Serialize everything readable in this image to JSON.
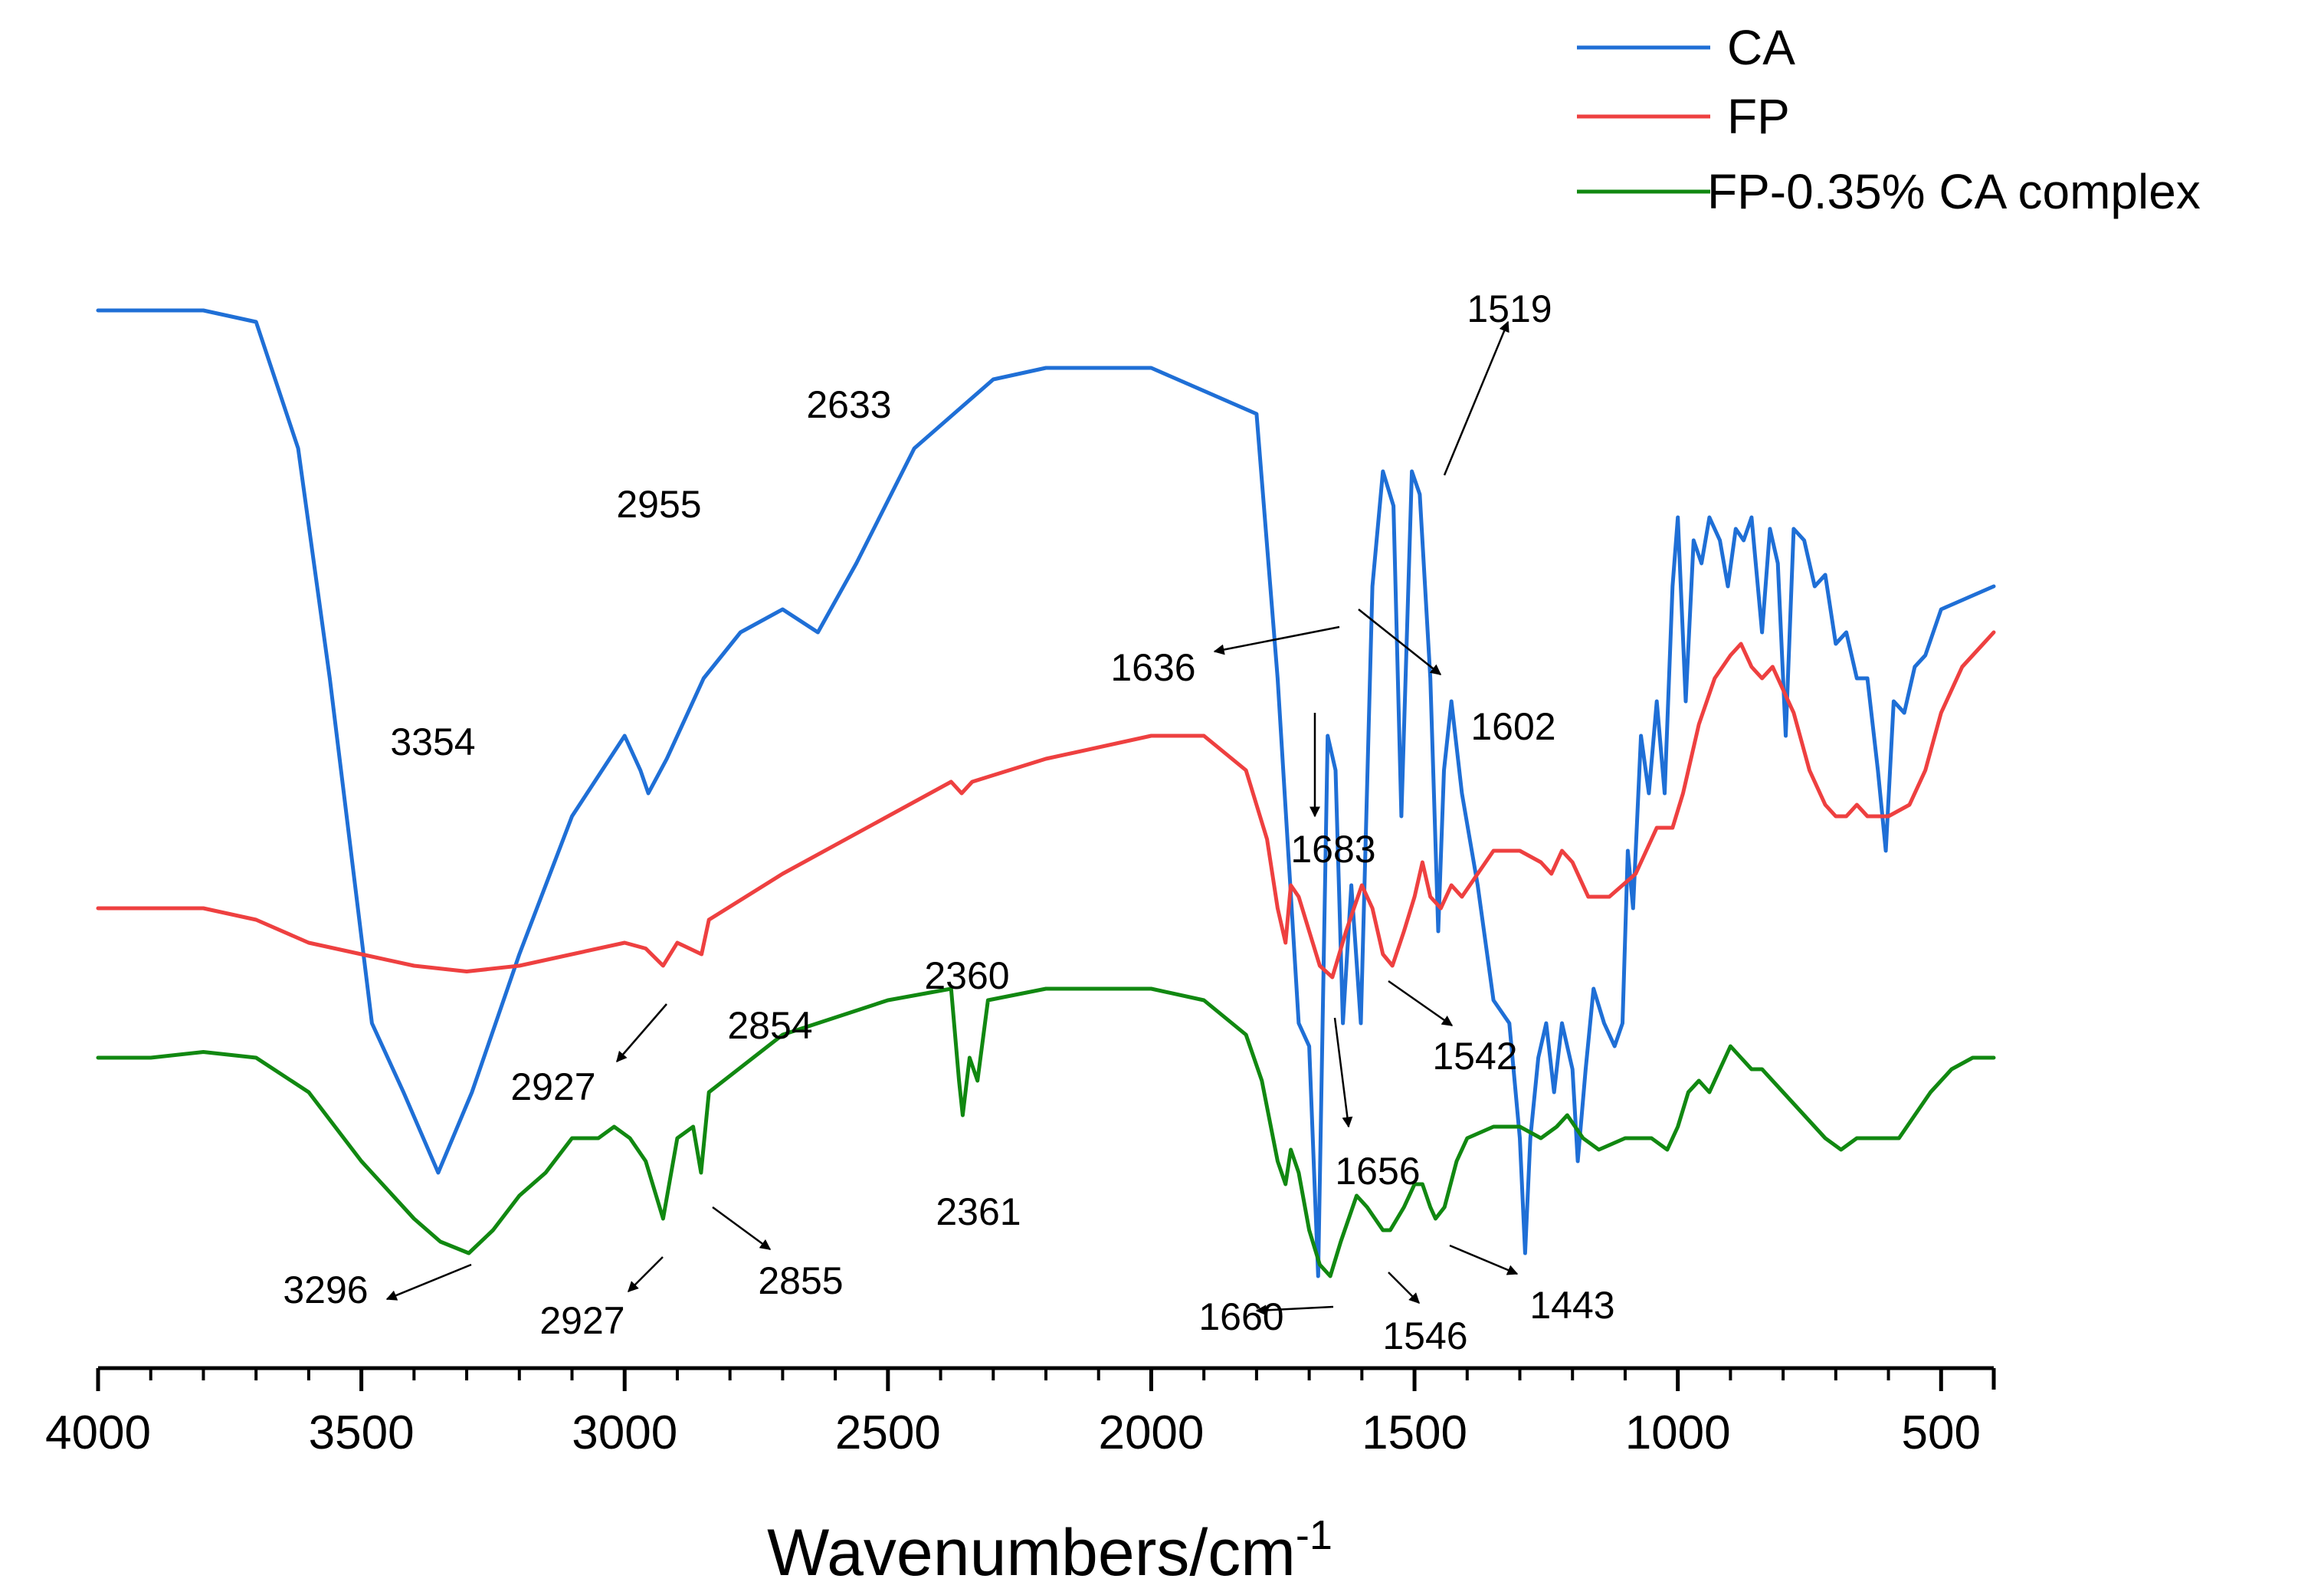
{
  "chart_data": {
    "type": "line",
    "xlabel": "Wavenumbers/cm",
    "xlabel_superscript": "-1",
    "ylabel": "",
    "xlim": [
      4000,
      400
    ],
    "x_ticks": [
      4000,
      3500,
      3000,
      2500,
      2000,
      1500,
      1000,
      500
    ],
    "x_tick_labels": [
      "4000",
      "3500",
      "3000",
      "2500",
      "2000",
      "1500",
      "1000",
      "500"
    ],
    "y_axis_visible": false,
    "grid": false,
    "legend_position": "top-right",
    "series": [
      {
        "name": "CA",
        "color": "#1f6fd6",
        "points": [
          [
            4000,
            0.92
          ],
          [
            3800,
            0.92
          ],
          [
            3700,
            0.91
          ],
          [
            3620,
            0.8
          ],
          [
            3560,
            0.6
          ],
          [
            3480,
            0.3
          ],
          [
            3420,
            0.24
          ],
          [
            3354,
            0.17
          ],
          [
            3290,
            0.24
          ],
          [
            3200,
            0.36
          ],
          [
            3100,
            0.48
          ],
          [
            3000,
            0.55
          ],
          [
            2970,
            0.52
          ],
          [
            2955,
            0.5
          ],
          [
            2920,
            0.53
          ],
          [
            2850,
            0.6
          ],
          [
            2780,
            0.64
          ],
          [
            2700,
            0.66
          ],
          [
            2633,
            0.64
          ],
          [
            2560,
            0.7
          ],
          [
            2450,
            0.8
          ],
          [
            2300,
            0.86
          ],
          [
            2200,
            0.87
          ],
          [
            2000,
            0.87
          ],
          [
            1800,
            0.83
          ],
          [
            1760,
            0.6
          ],
          [
            1720,
            0.3
          ],
          [
            1700,
            0.28
          ],
          [
            1683,
            0.08
          ],
          [
            1665,
            0.55
          ],
          [
            1650,
            0.52
          ],
          [
            1636,
            0.3
          ],
          [
            1620,
            0.42
          ],
          [
            1602,
            0.3
          ],
          [
            1580,
            0.68
          ],
          [
            1560,
            0.78
          ],
          [
            1540,
            0.75
          ],
          [
            1525,
            0.48
          ],
          [
            1505,
            0.78
          ],
          [
            1490,
            0.76
          ],
          [
            1470,
            0.6
          ],
          [
            1455,
            0.38
          ],
          [
            1444,
            0.52
          ],
          [
            1430,
            0.58
          ],
          [
            1410,
            0.5
          ],
          [
            1380,
            0.42
          ],
          [
            1350,
            0.32
          ],
          [
            1320,
            0.3
          ],
          [
            1300,
            0.2
          ],
          [
            1290,
            0.1
          ],
          [
            1280,
            0.2
          ],
          [
            1265,
            0.27
          ],
          [
            1250,
            0.3
          ],
          [
            1235,
            0.24
          ],
          [
            1220,
            0.3
          ],
          [
            1200,
            0.26
          ],
          [
            1190,
            0.18
          ],
          [
            1175,
            0.26
          ],
          [
            1160,
            0.33
          ],
          [
            1140,
            0.3
          ],
          [
            1120,
            0.28
          ],
          [
            1105,
            0.3
          ],
          [
            1095,
            0.45
          ],
          [
            1085,
            0.4
          ],
          [
            1070,
            0.55
          ],
          [
            1055,
            0.5
          ],
          [
            1040,
            0.58
          ],
          [
            1025,
            0.5
          ],
          [
            1010,
            0.68
          ],
          [
            1000,
            0.74
          ],
          [
            985,
            0.58
          ],
          [
            970,
            0.72
          ],
          [
            955,
            0.7
          ],
          [
            940,
            0.74
          ],
          [
            920,
            0.72
          ],
          [
            905,
            0.68
          ],
          [
            890,
            0.73
          ],
          [
            875,
            0.72
          ],
          [
            860,
            0.74
          ],
          [
            840,
            0.64
          ],
          [
            825,
            0.73
          ],
          [
            810,
            0.7
          ],
          [
            795,
            0.55
          ],
          [
            780,
            0.73
          ],
          [
            760,
            0.72
          ],
          [
            740,
            0.68
          ],
          [
            720,
            0.69
          ],
          [
            700,
            0.63
          ],
          [
            680,
            0.64
          ],
          [
            660,
            0.6
          ],
          [
            640,
            0.6
          ],
          [
            620,
            0.52
          ],
          [
            605,
            0.45
          ],
          [
            590,
            0.58
          ],
          [
            570,
            0.57
          ],
          [
            550,
            0.61
          ],
          [
            530,
            0.62
          ],
          [
            500,
            0.66
          ],
          [
            450,
            0.67
          ],
          [
            400,
            0.68
          ]
        ]
      },
      {
        "name": "FP",
        "color": "#ee4040",
        "points": [
          [
            4000,
            0.4
          ],
          [
            3800,
            0.4
          ],
          [
            3700,
            0.39
          ],
          [
            3600,
            0.37
          ],
          [
            3500,
            0.36
          ],
          [
            3400,
            0.35
          ],
          [
            3300,
            0.345
          ],
          [
            3200,
            0.35
          ],
          [
            3100,
            0.36
          ],
          [
            3000,
            0.37
          ],
          [
            2960,
            0.365
          ],
          [
            2927,
            0.35
          ],
          [
            2900,
            0.37
          ],
          [
            2854,
            0.36
          ],
          [
            2840,
            0.39
          ],
          [
            2700,
            0.43
          ],
          [
            2500,
            0.48
          ],
          [
            2380,
            0.51
          ],
          [
            2360,
            0.5
          ],
          [
            2340,
            0.51
          ],
          [
            2200,
            0.53
          ],
          [
            2000,
            0.55
          ],
          [
            1900,
            0.55
          ],
          [
            1820,
            0.52
          ],
          [
            1780,
            0.46
          ],
          [
            1760,
            0.4
          ],
          [
            1745,
            0.37
          ],
          [
            1735,
            0.42
          ],
          [
            1720,
            0.41
          ],
          [
            1700,
            0.38
          ],
          [
            1680,
            0.35
          ],
          [
            1656,
            0.34
          ],
          [
            1630,
            0.38
          ],
          [
            1600,
            0.42
          ],
          [
            1580,
            0.4
          ],
          [
            1560,
            0.36
          ],
          [
            1542,
            0.35
          ],
          [
            1520,
            0.38
          ],
          [
            1500,
            0.41
          ],
          [
            1485,
            0.44
          ],
          [
            1470,
            0.41
          ],
          [
            1450,
            0.4
          ],
          [
            1430,
            0.42
          ],
          [
            1410,
            0.41
          ],
          [
            1380,
            0.43
          ],
          [
            1350,
            0.45
          ],
          [
            1300,
            0.45
          ],
          [
            1260,
            0.44
          ],
          [
            1240,
            0.43
          ],
          [
            1220,
            0.45
          ],
          [
            1200,
            0.44
          ],
          [
            1170,
            0.41
          ],
          [
            1130,
            0.41
          ],
          [
            1080,
            0.43
          ],
          [
            1040,
            0.47
          ],
          [
            1010,
            0.47
          ],
          [
            990,
            0.5
          ],
          [
            960,
            0.56
          ],
          [
            930,
            0.6
          ],
          [
            900,
            0.62
          ],
          [
            880,
            0.63
          ],
          [
            860,
            0.61
          ],
          [
            840,
            0.6
          ],
          [
            820,
            0.61
          ],
          [
            800,
            0.59
          ],
          [
            780,
            0.57
          ],
          [
            750,
            0.52
          ],
          [
            720,
            0.49
          ],
          [
            700,
            0.48
          ],
          [
            680,
            0.48
          ],
          [
            660,
            0.49
          ],
          [
            640,
            0.48
          ],
          [
            600,
            0.48
          ],
          [
            560,
            0.49
          ],
          [
            530,
            0.52
          ],
          [
            500,
            0.57
          ],
          [
            460,
            0.61
          ],
          [
            420,
            0.63
          ],
          [
            400,
            0.64
          ]
        ]
      },
      {
        "name": "FP-0.35% CA complex",
        "color": "#118811",
        "points": [
          [
            4000,
            0.27
          ],
          [
            3900,
            0.27
          ],
          [
            3800,
            0.275
          ],
          [
            3700,
            0.27
          ],
          [
            3600,
            0.24
          ],
          [
            3500,
            0.18
          ],
          [
            3400,
            0.13
          ],
          [
            3350,
            0.11
          ],
          [
            3296,
            0.1
          ],
          [
            3250,
            0.12
          ],
          [
            3200,
            0.15
          ],
          [
            3150,
            0.17
          ],
          [
            3100,
            0.2
          ],
          [
            3050,
            0.2
          ],
          [
            3020,
            0.21
          ],
          [
            2990,
            0.2
          ],
          [
            2960,
            0.18
          ],
          [
            2927,
            0.13
          ],
          [
            2900,
            0.2
          ],
          [
            2870,
            0.21
          ],
          [
            2855,
            0.17
          ],
          [
            2840,
            0.24
          ],
          [
            2700,
            0.29
          ],
          [
            2500,
            0.32
          ],
          [
            2380,
            0.33
          ],
          [
            2365,
            0.25
          ],
          [
            2358,
            0.22
          ],
          [
            2345,
            0.27
          ],
          [
            2330,
            0.25
          ],
          [
            2310,
            0.32
          ],
          [
            2200,
            0.33
          ],
          [
            2000,
            0.33
          ],
          [
            1900,
            0.32
          ],
          [
            1820,
            0.29
          ],
          [
            1790,
            0.25
          ],
          [
            1760,
            0.18
          ],
          [
            1745,
            0.16
          ],
          [
            1735,
            0.19
          ],
          [
            1720,
            0.17
          ],
          [
            1700,
            0.12
          ],
          [
            1680,
            0.09
          ],
          [
            1660,
            0.08
          ],
          [
            1640,
            0.11
          ],
          [
            1610,
            0.15
          ],
          [
            1590,
            0.14
          ],
          [
            1560,
            0.12
          ],
          [
            1546,
            0.12
          ],
          [
            1520,
            0.14
          ],
          [
            1500,
            0.16
          ],
          [
            1485,
            0.16
          ],
          [
            1470,
            0.14
          ],
          [
            1460,
            0.13
          ],
          [
            1443,
            0.14
          ],
          [
            1420,
            0.18
          ],
          [
            1400,
            0.2
          ],
          [
            1350,
            0.21
          ],
          [
            1300,
            0.21
          ],
          [
            1260,
            0.2
          ],
          [
            1230,
            0.21
          ],
          [
            1210,
            0.22
          ],
          [
            1180,
            0.2
          ],
          [
            1150,
            0.19
          ],
          [
            1100,
            0.2
          ],
          [
            1050,
            0.2
          ],
          [
            1020,
            0.19
          ],
          [
            1000,
            0.21
          ],
          [
            980,
            0.24
          ],
          [
            960,
            0.25
          ],
          [
            940,
            0.24
          ],
          [
            920,
            0.26
          ],
          [
            900,
            0.28
          ],
          [
            880,
            0.27
          ],
          [
            860,
            0.26
          ],
          [
            840,
            0.26
          ],
          [
            800,
            0.24
          ],
          [
            760,
            0.22
          ],
          [
            720,
            0.2
          ],
          [
            690,
            0.19
          ],
          [
            660,
            0.2
          ],
          [
            620,
            0.2
          ],
          [
            580,
            0.2
          ],
          [
            550,
            0.22
          ],
          [
            520,
            0.24
          ],
          [
            480,
            0.26
          ],
          [
            440,
            0.27
          ],
          [
            400,
            0.27
          ]
        ]
      }
    ],
    "annotations": [
      {
        "text": "3354",
        "x": 3354,
        "series": "CA"
      },
      {
        "text": "2955",
        "x": 2955,
        "series": "CA"
      },
      {
        "text": "2633",
        "x": 2633,
        "series": "CA"
      },
      {
        "text": "1519",
        "x": 1519,
        "series": "CA"
      },
      {
        "text": "1636",
        "x": 1636,
        "series": "CA"
      },
      {
        "text": "1602",
        "x": 1602,
        "series": "CA"
      },
      {
        "text": "1683",
        "x": 1683,
        "series": "CA"
      },
      {
        "text": "2360",
        "x": 2360,
        "series": "FP"
      },
      {
        "text": "2854",
        "x": 2854,
        "series": "FP"
      },
      {
        "text": "2927",
        "x": 2927,
        "series": "FP"
      },
      {
        "text": "1542",
        "x": 1542,
        "series": "FP"
      },
      {
        "text": "1656",
        "x": 1656,
        "series": "FP"
      },
      {
        "text": "2361",
        "x": 2361,
        "series": "FP-0.35% CA complex"
      },
      {
        "text": "3296",
        "x": 3296,
        "series": "FP-0.35% CA complex"
      },
      {
        "text": "2927",
        "x": 2927,
        "series": "FP-0.35% CA complex"
      },
      {
        "text": "2855",
        "x": 2855,
        "series": "FP-0.35% CA complex"
      },
      {
        "text": "1660",
        "x": 1660,
        "series": "FP-0.35% CA complex"
      },
      {
        "text": "1546",
        "x": 1546,
        "series": "FP-0.35% CA complex"
      },
      {
        "text": "1443",
        "x": 1443,
        "series": "FP-0.35% CA complex"
      }
    ]
  }
}
